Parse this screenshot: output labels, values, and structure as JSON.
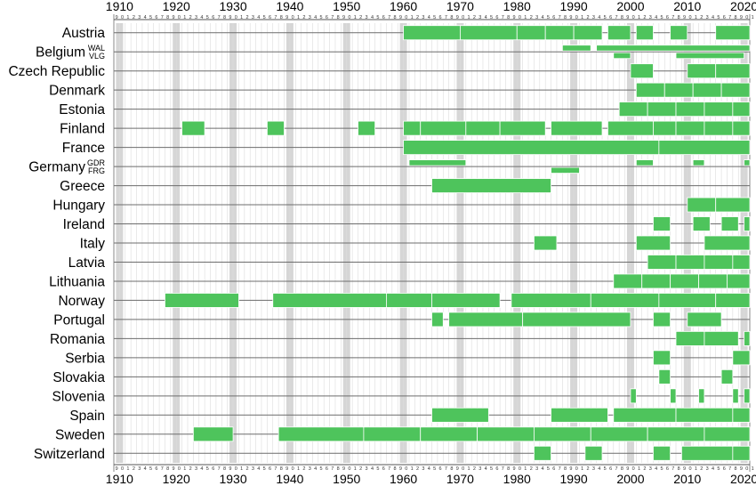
{
  "chart_data": {
    "type": "timeline",
    "x_range": [
      1909,
      2021
    ],
    "x_ticks": [
      "1910",
      "1920",
      "1930",
      "1940",
      "1950",
      "1960",
      "1970",
      "1980",
      "1990",
      "2000",
      "2010",
      "2020"
    ],
    "digit_labels": [
      "0",
      "1",
      "2",
      "3",
      "4",
      "5",
      "6",
      "7",
      "8",
      "9"
    ],
    "bar_color": "#4ec45c",
    "rows": [
      {
        "country": "Austria",
        "tracks": [
          [
            [
              1960,
              1970
            ],
            [
              1970,
              1980
            ],
            [
              1980,
              1985
            ],
            [
              1985,
              1990
            ],
            [
              1990,
              1995
            ],
            [
              1996,
              2000
            ],
            [
              2001,
              2004
            ],
            [
              2007,
              2010
            ],
            [
              2015,
              2021
            ]
          ]
        ]
      },
      {
        "country": "Belgium",
        "sub_labels": [
          "WAL",
          "VLG"
        ],
        "tracks": [
          [
            [
              1988,
              1993
            ],
            [
              1994,
              2021
            ]
          ],
          [
            [
              1997,
              2000
            ],
            [
              2008,
              2020
            ]
          ]
        ]
      },
      {
        "country": "Czech Republic",
        "tracks": [
          [
            [
              2000,
              2004
            ],
            [
              2010,
              2015
            ],
            [
              2015,
              2021
            ]
          ]
        ]
      },
      {
        "country": "Denmark",
        "tracks": [
          [
            [
              2001,
              2006
            ],
            [
              2006,
              2011
            ],
            [
              2011,
              2016
            ],
            [
              2016,
              2021
            ]
          ]
        ]
      },
      {
        "country": "Estonia",
        "tracks": [
          [
            [
              1998,
              2003
            ],
            [
              2003,
              2008
            ],
            [
              2008,
              2013
            ],
            [
              2013,
              2018
            ],
            [
              2018,
              2021
            ]
          ]
        ]
      },
      {
        "country": "Finland",
        "tracks": [
          [
            [
              1921,
              1925
            ],
            [
              1936,
              1939
            ],
            [
              1952,
              1955
            ],
            [
              1960,
              1963
            ],
            [
              1963,
              1971
            ],
            [
              1971,
              1977
            ],
            [
              1977,
              1985
            ],
            [
              1986,
              1995
            ],
            [
              1996,
              2004
            ],
            [
              2004,
              2008
            ],
            [
              2008,
              2013
            ],
            [
              2013,
              2018
            ],
            [
              2018,
              2021
            ]
          ]
        ]
      },
      {
        "country": "France",
        "tracks": [
          [
            [
              1960,
              2005
            ],
            [
              2005,
              2021
            ]
          ]
        ]
      },
      {
        "country": "Germany",
        "sub_labels": [
          "GDR",
          "FRG"
        ],
        "tracks": [
          [
            [
              1961,
              1971
            ],
            [
              2001,
              2004
            ],
            [
              2011,
              2013
            ],
            [
              2020,
              2021
            ]
          ],
          [
            [
              1986,
              1991
            ]
          ]
        ]
      },
      {
        "country": "Greece",
        "tracks": [
          [
            [
              1965,
              1986
            ]
          ]
        ]
      },
      {
        "country": "Hungary",
        "tracks": [
          [
            [
              2010,
              2015
            ],
            [
              2015,
              2021
            ]
          ]
        ]
      },
      {
        "country": "Ireland",
        "tracks": [
          [
            [
              2004,
              2007
            ],
            [
              2011,
              2014
            ],
            [
              2016,
              2019
            ],
            [
              2020,
              2021
            ]
          ]
        ]
      },
      {
        "country": "Italy",
        "tracks": [
          [
            [
              1983,
              1987
            ],
            [
              2001,
              2007
            ],
            [
              2013,
              2021
            ]
          ]
        ]
      },
      {
        "country": "Latvia",
        "tracks": [
          [
            [
              2003,
              2008
            ],
            [
              2008,
              2013
            ],
            [
              2013,
              2018
            ],
            [
              2018,
              2021
            ]
          ]
        ]
      },
      {
        "country": "Lithuania",
        "tracks": [
          [
            [
              1997,
              2002
            ],
            [
              2002,
              2007
            ],
            [
              2007,
              2012
            ],
            [
              2012,
              2017
            ],
            [
              2017,
              2021
            ]
          ]
        ]
      },
      {
        "country": "Norway",
        "tracks": [
          [
            [
              1918,
              1931
            ],
            [
              1937,
              1957
            ],
            [
              1957,
              1965
            ],
            [
              1965,
              1977
            ],
            [
              1979,
              1993
            ],
            [
              1993,
              2005
            ],
            [
              2005,
              2015
            ],
            [
              2015,
              2021
            ]
          ]
        ]
      },
      {
        "country": "Portugal",
        "tracks": [
          [
            [
              1965,
              1967
            ],
            [
              1968,
              1981
            ],
            [
              1981,
              2000
            ],
            [
              2004,
              2007
            ],
            [
              2010,
              2016
            ]
          ]
        ]
      },
      {
        "country": "Romania",
        "tracks": [
          [
            [
              2008,
              2013
            ],
            [
              2013,
              2019
            ],
            [
              2020,
              2021
            ]
          ]
        ]
      },
      {
        "country": "Serbia",
        "tracks": [
          [
            [
              2004,
              2007
            ],
            [
              2018,
              2021
            ]
          ]
        ]
      },
      {
        "country": "Slovakia",
        "tracks": [
          [
            [
              2005,
              2007
            ],
            [
              2016,
              2018
            ]
          ]
        ]
      },
      {
        "country": "Slovenia",
        "tracks": [
          [
            [
              2000,
              2001
            ],
            [
              2007,
              2008
            ],
            [
              2012,
              2013
            ],
            [
              2018,
              2019
            ],
            [
              2020,
              2021
            ]
          ]
        ]
      },
      {
        "country": "Spain",
        "tracks": [
          [
            [
              1965,
              1975
            ],
            [
              1986,
              1996
            ],
            [
              1997,
              2008
            ],
            [
              2008,
              2018
            ],
            [
              2018,
              2021
            ]
          ]
        ]
      },
      {
        "country": "Sweden",
        "tracks": [
          [
            [
              1923,
              1930
            ],
            [
              1938,
              1953
            ],
            [
              1953,
              1963
            ],
            [
              1963,
              1973
            ],
            [
              1973,
              1983
            ],
            [
              1983,
              1993
            ],
            [
              1993,
              2003
            ],
            [
              2003,
              2013
            ],
            [
              2013,
              2021
            ]
          ]
        ]
      },
      {
        "country": "Switzerland",
        "tracks": [
          [
            [
              1983,
              1986
            ],
            [
              1992,
              1995
            ],
            [
              2004,
              2007
            ],
            [
              2009,
              2018
            ],
            [
              2018,
              2021
            ]
          ]
        ]
      }
    ]
  }
}
